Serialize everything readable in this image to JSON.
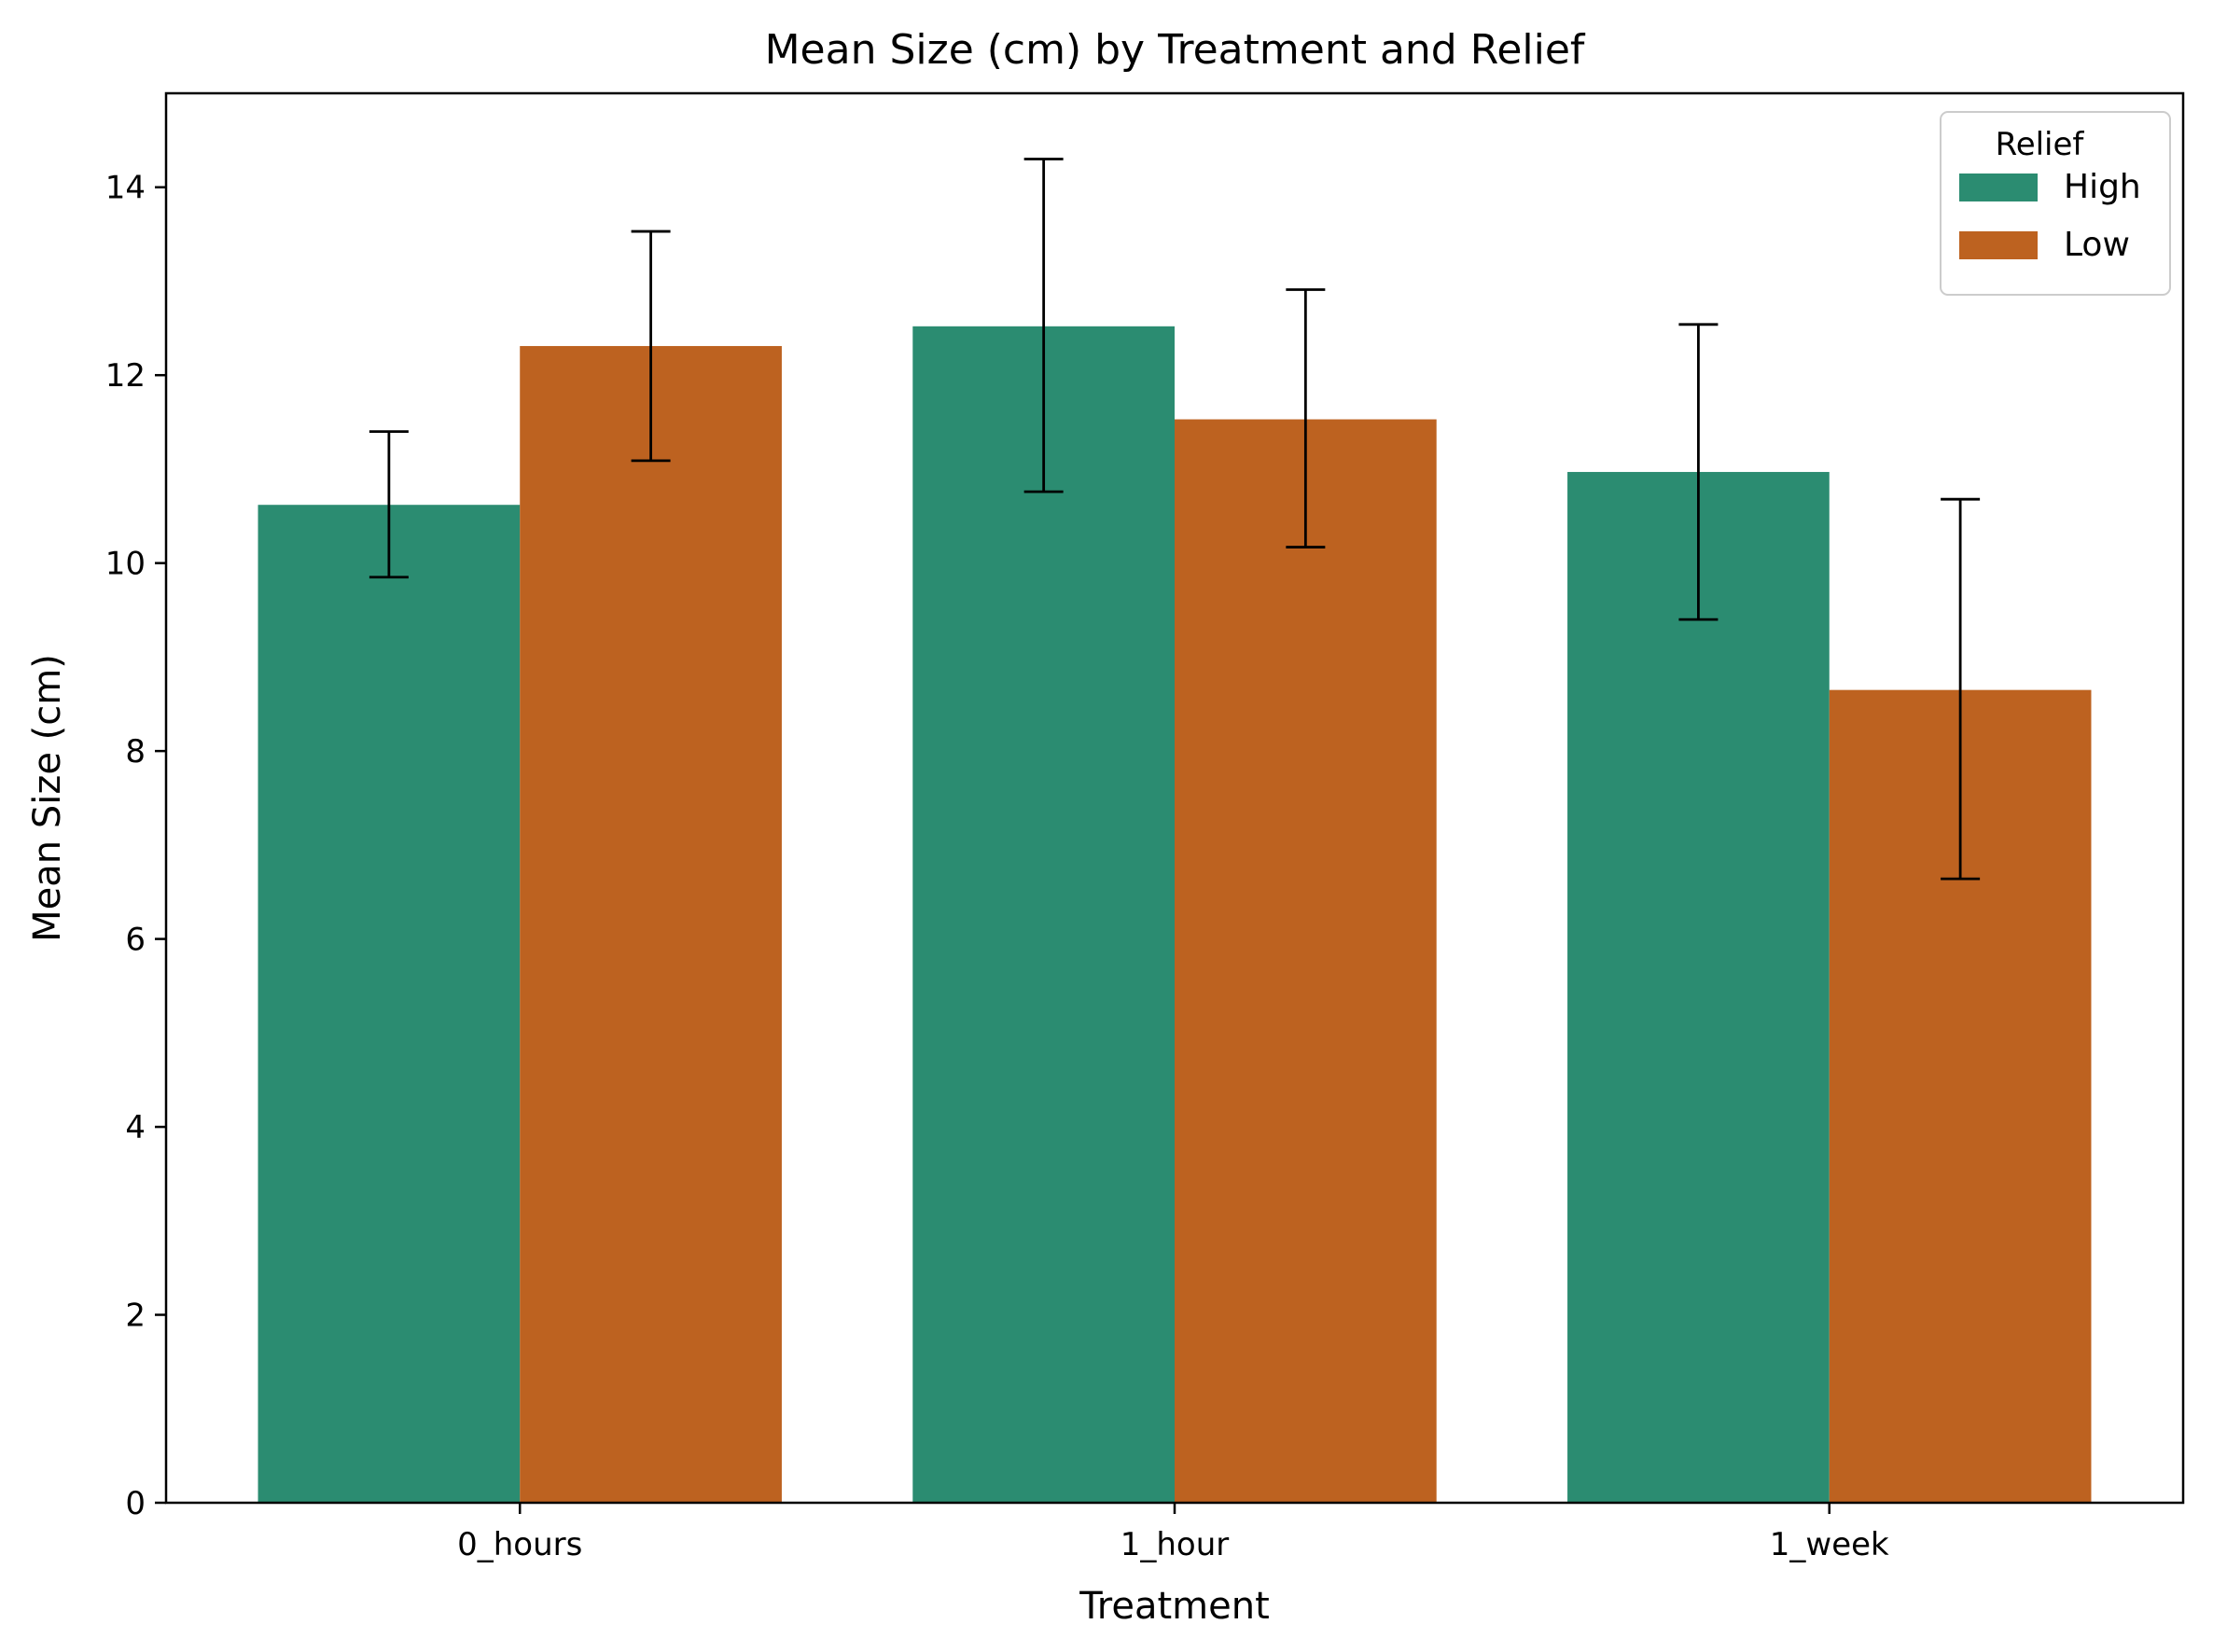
{
  "chart_data": {
    "type": "bar",
    "title": "Mean Size (cm) by Treatment and Relief",
    "xlabel": "Treatment",
    "ylabel": "Mean Size (cm)",
    "categories": [
      "0_hours",
      "1_hour",
      "1_week"
    ],
    "ylim": [
      0,
      15
    ],
    "yticks": [
      0,
      2,
      4,
      6,
      8,
      10,
      12,
      14
    ],
    "grid": false,
    "legend": {
      "title": "Relief",
      "position": "top-right"
    },
    "series": [
      {
        "name": "High",
        "color": "#2b8c71",
        "values": [
          10.62,
          12.52,
          10.97
        ],
        "error_low": [
          9.85,
          10.76,
          9.4
        ],
        "error_high": [
          11.4,
          14.3,
          12.54
        ]
      },
      {
        "name": "Low",
        "color": "#bd6220",
        "values": [
          12.31,
          11.53,
          8.65
        ],
        "error_low": [
          11.09,
          10.17,
          6.64
        ],
        "error_high": [
          13.53,
          12.91,
          10.68
        ]
      }
    ]
  }
}
